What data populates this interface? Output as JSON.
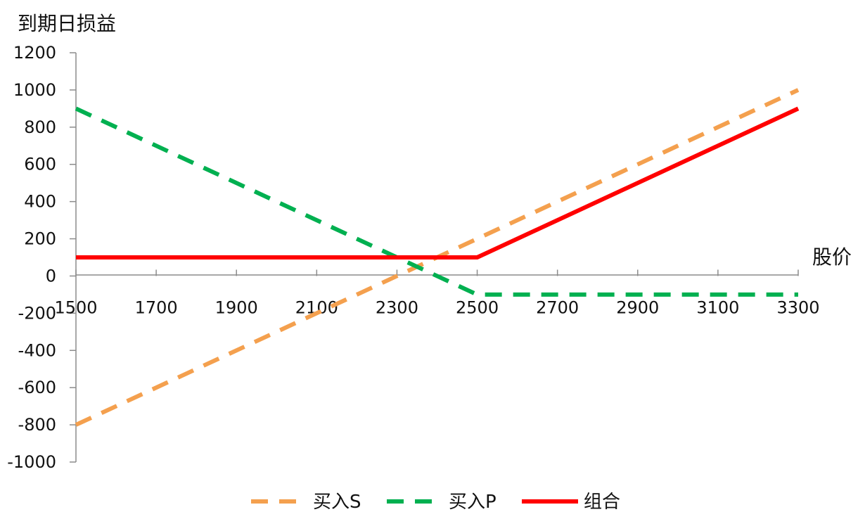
{
  "chart_data": {
    "type": "line",
    "title": "",
    "ylabel": "到期日损益",
    "xlabel": "股价",
    "x": [
      1500,
      1700,
      1900,
      2100,
      2300,
      2500,
      2700,
      2900,
      3100,
      3300
    ],
    "xticks": [
      "1500",
      "1700",
      "1900",
      "2100",
      "2300",
      "2500",
      "2700",
      "2900",
      "3100",
      "3300"
    ],
    "yticks": [
      "1200",
      "1000",
      "800",
      "600",
      "400",
      "200",
      "0",
      "-200",
      "-400",
      "-600",
      "-800",
      "-1000"
    ],
    "xlim": [
      1500,
      3300
    ],
    "ylim": [
      -1000,
      1200
    ],
    "grid": false,
    "legend_position": "bottom",
    "series": [
      {
        "name": "买入S",
        "color": "#F4A04E",
        "style": "dashed",
        "x": [
          1500,
          3300
        ],
        "values": [
          -800,
          1000
        ]
      },
      {
        "name": "买入P",
        "color": "#00B050",
        "style": "dashed",
        "x": [
          1500,
          2500,
          3300
        ],
        "values": [
          900,
          -100,
          -100
        ]
      },
      {
        "name": "组合",
        "color": "#FF0000",
        "style": "solid",
        "x": [
          1500,
          2500,
          3300
        ],
        "values": [
          100,
          100,
          900
        ]
      }
    ]
  }
}
